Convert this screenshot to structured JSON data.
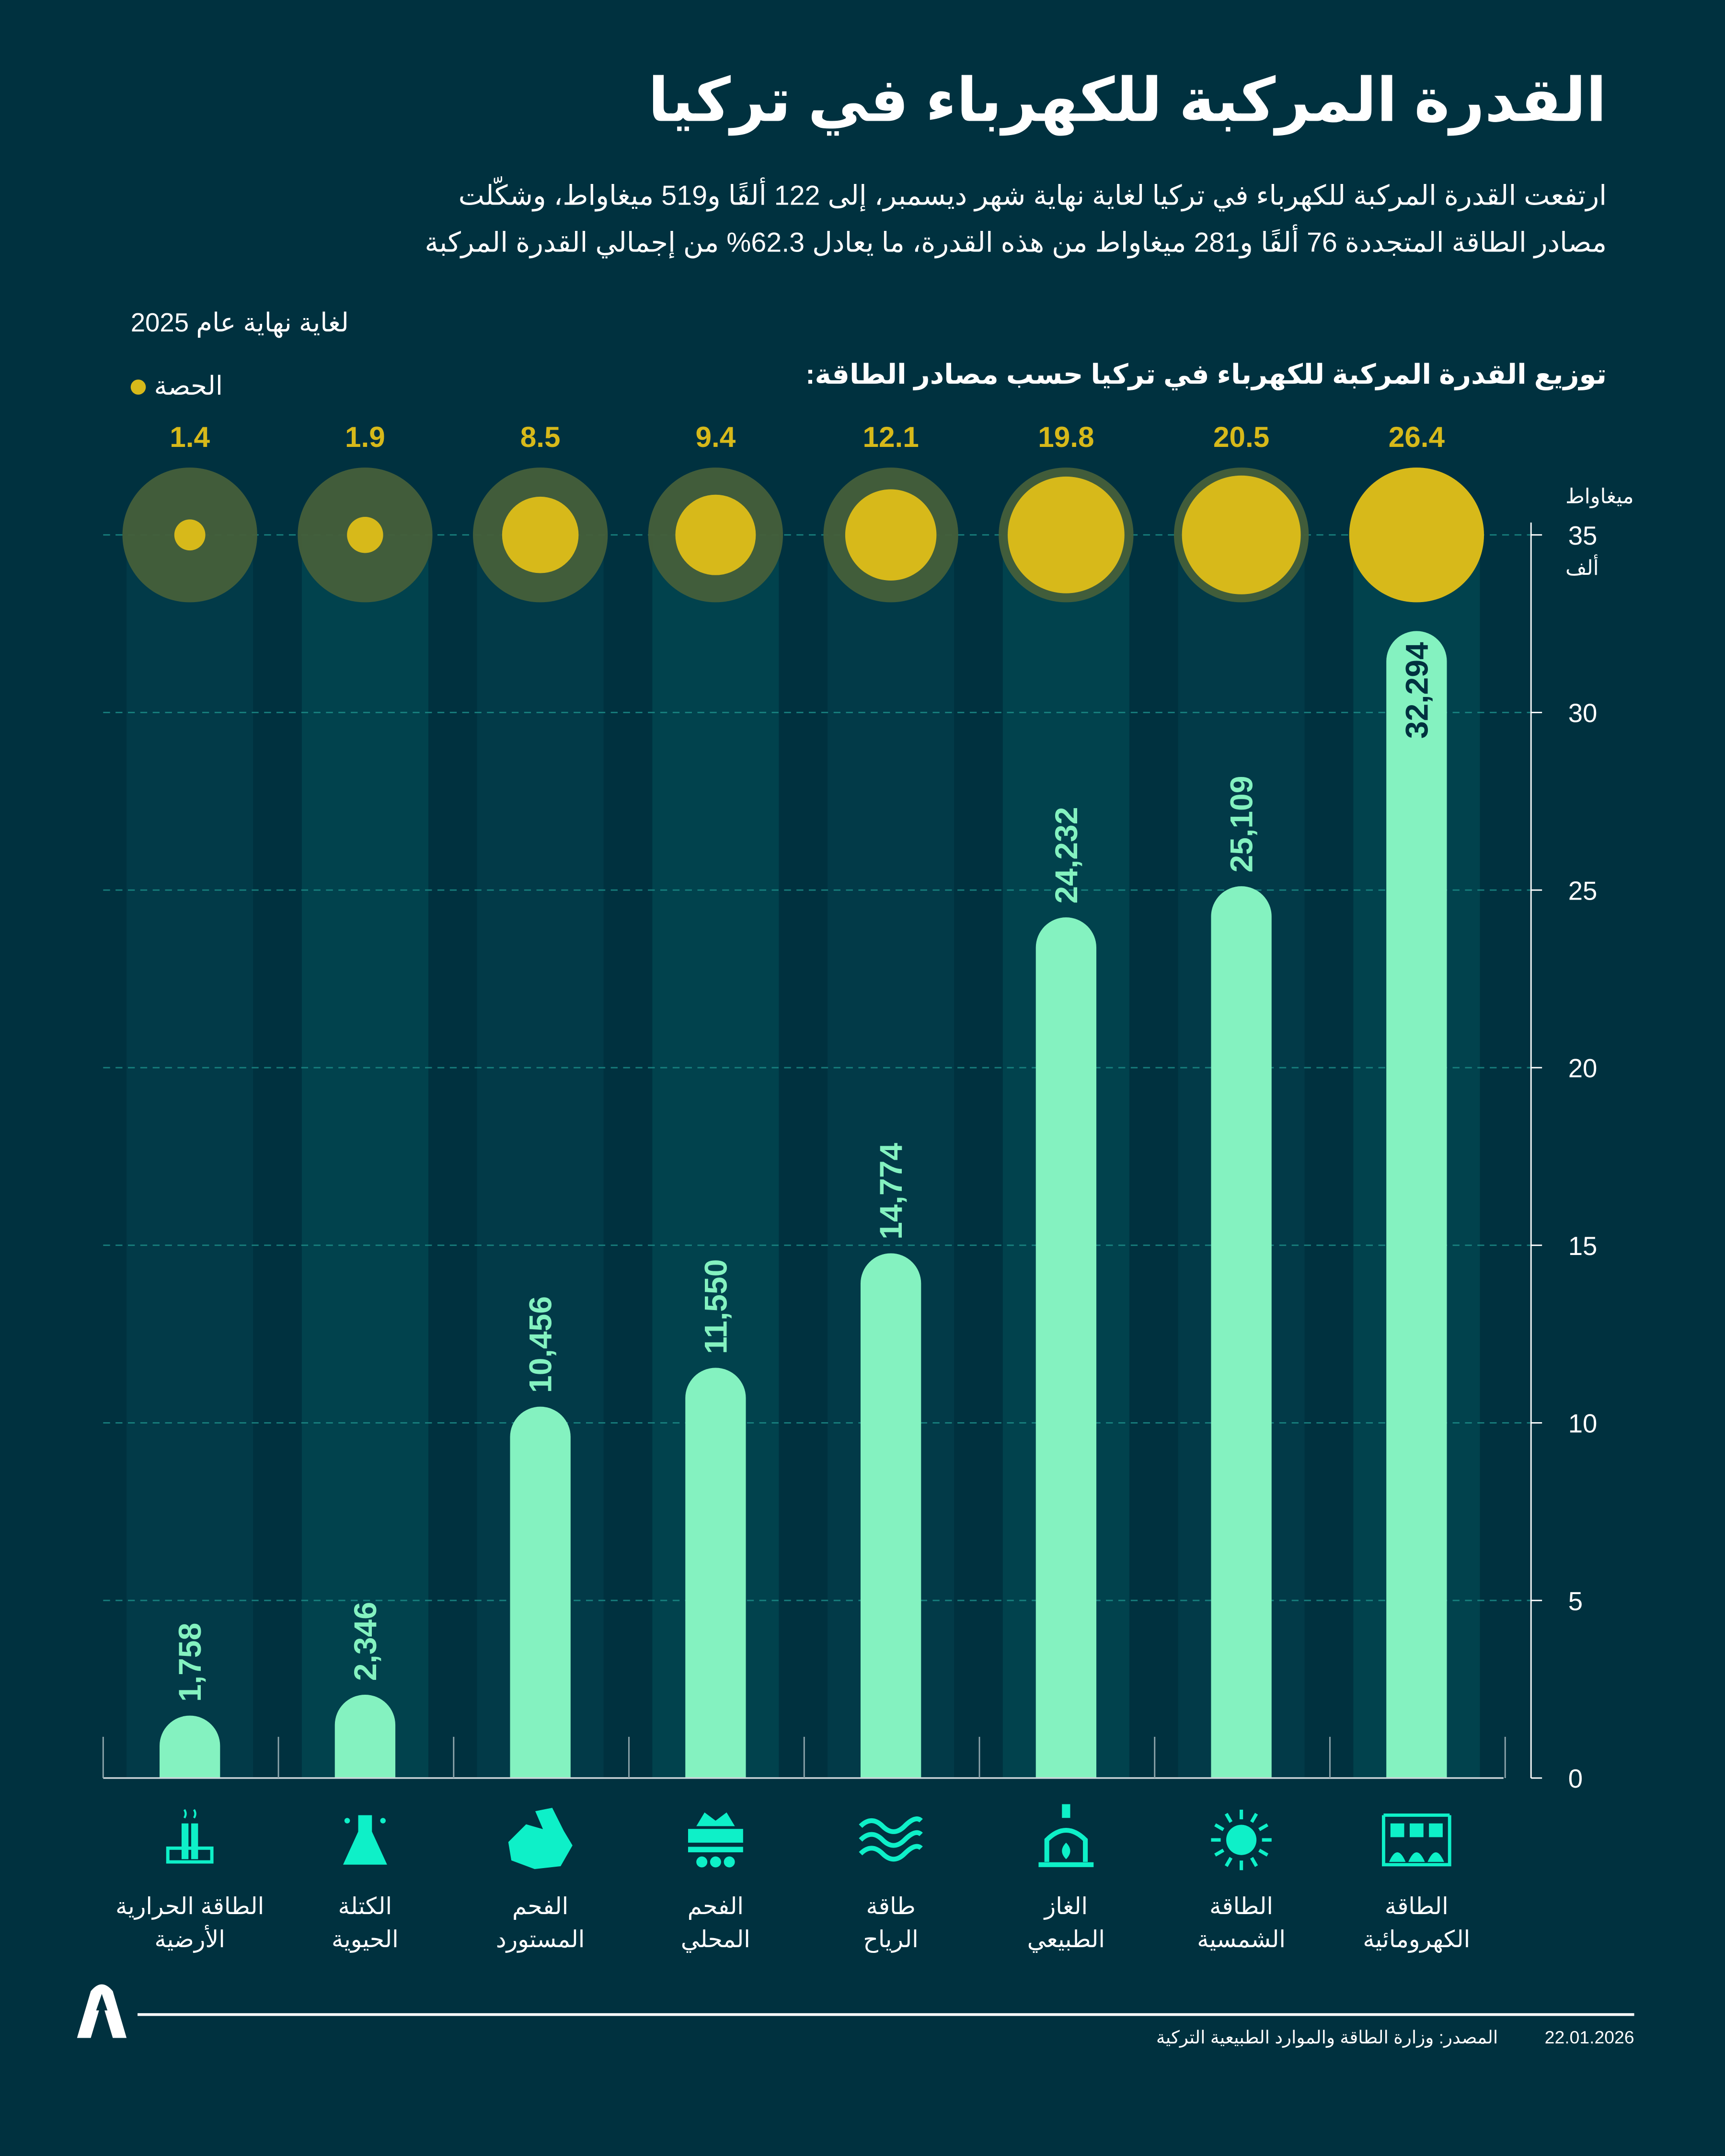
{
  "title": "القدرة المركبة للكهرباء في تركيا",
  "intro": "ارتفعت القدرة المركبة للكهرباء في تركيا لغاية نهاية شهر ديسمبر، إلى 122 ألفًا و519 ميغاواط، وشكّلت مصادر الطاقة المتجددة 76 ألفًا و281 ميغاواط من هذه القدرة، ما يعادل 62.3% من إجمالي القدرة المركبة",
  "as_of": "لغاية نهاية عام 2025",
  "legend_share": "الحصة",
  "footer": {
    "source": "المصدر: وزارة الطاقة والموارد الطبيعية التركية",
    "date": "22.01.2026",
    "logo": "AA"
  },
  "colors": {
    "background": "#00313f",
    "bar": "#84f2c0",
    "share": "#d7b91a",
    "share_ring": "#445f3a",
    "icon": "#0ef0c8",
    "grid": "#1d8f8a"
  },
  "chart_data": {
    "type": "bar",
    "title": "توزيع القدرة المركبة للكهرباء في تركيا حسب مصادر الطاقة:",
    "ylabel_top": "ميغاواط",
    "ylabel_bottom": "ألف",
    "ylim": [
      0,
      35
    ],
    "yticks": [
      "0",
      "5",
      "10",
      "15",
      "20",
      "25",
      "30",
      "35"
    ],
    "grid": true,
    "categories": [
      [
        "الطاقة الحرارية",
        "الأرضية"
      ],
      [
        "الكتلة",
        "الحيوية"
      ],
      [
        "الفحم",
        "المستورد"
      ],
      [
        "الفحم",
        "المحلي"
      ],
      [
        "طاقة",
        "الرياح"
      ],
      [
        "الغاز",
        "الطبيعي"
      ],
      [
        "الطاقة",
        "الشمسية"
      ],
      [
        "الطاقة",
        "الكهرومائية"
      ]
    ],
    "icons": [
      "geothermal-plant-icon",
      "biomass-flask-icon",
      "imported-coal-icon",
      "coal-mine-cart-icon",
      "wind-icon",
      "natural-gas-icon",
      "sun-icon",
      "hydro-dam-icon"
    ],
    "values": [
      1758,
      2346,
      10456,
      11550,
      14774,
      24232,
      25109,
      32294
    ],
    "value_labels": [
      "1,758",
      "2,346",
      "10,456",
      "11,550",
      "14,774",
      "24,232",
      "25,109",
      "32,294"
    ],
    "series_share_percent": [
      1.4,
      1.9,
      8.5,
      9.4,
      12.1,
      19.8,
      20.5,
      26.4
    ],
    "share_labels": [
      "1.4",
      "1.9",
      "8.5",
      "9.4",
      "12.1",
      "19.8",
      "20.5",
      "26.4"
    ]
  }
}
